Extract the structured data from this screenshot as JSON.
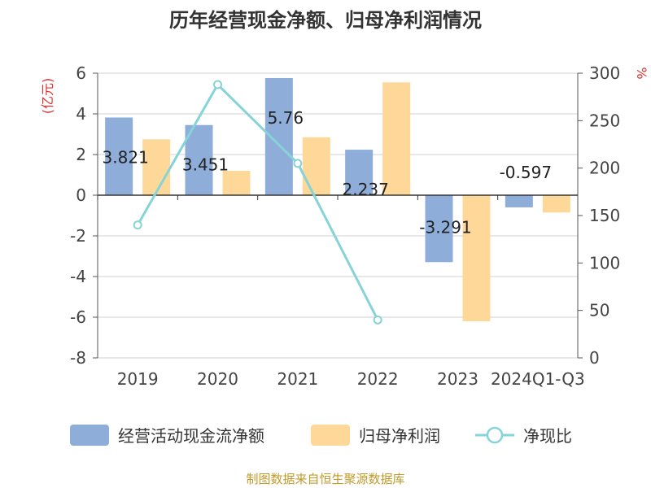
{
  "chart_data": {
    "type": "bar",
    "title": "历年经营现金净额、归母净利润情况",
    "categories": [
      "2019",
      "2020",
      "2021",
      "2022",
      "2023",
      "2024Q1-Q3"
    ],
    "series": [
      {
        "name": "经营活动现金流净额",
        "kind": "bar",
        "axis": "left",
        "color": "#8eadd9",
        "values": [
          3.821,
          3.451,
          5.76,
          2.237,
          -3.291,
          -0.597
        ],
        "labels": [
          "3.821",
          "3.451",
          "5.76",
          "2.237",
          "-3.291",
          "-0.597"
        ]
      },
      {
        "name": "归母净利润",
        "kind": "bar",
        "axis": "left",
        "color": "#fdd899",
        "values": [
          2.75,
          1.2,
          2.85,
          5.55,
          -6.2,
          -0.85
        ]
      },
      {
        "name": "净现比",
        "kind": "line",
        "axis": "right",
        "color": "#86d3d8",
        "values": [
          140,
          288,
          205,
          40,
          null,
          null
        ]
      }
    ],
    "y_left": {
      "unit": "(亿元)",
      "min": -8,
      "max": 6,
      "ticks": [
        6,
        4,
        2,
        0,
        -2,
        -4,
        -6,
        -8
      ]
    },
    "y_right": {
      "unit": "%",
      "min": 0,
      "max": 300,
      "ticks": [
        300,
        250,
        200,
        150,
        100,
        50,
        0
      ]
    },
    "grid": true,
    "legend_position": "bottom"
  },
  "source": "制图数据来自恒生聚源数据库"
}
